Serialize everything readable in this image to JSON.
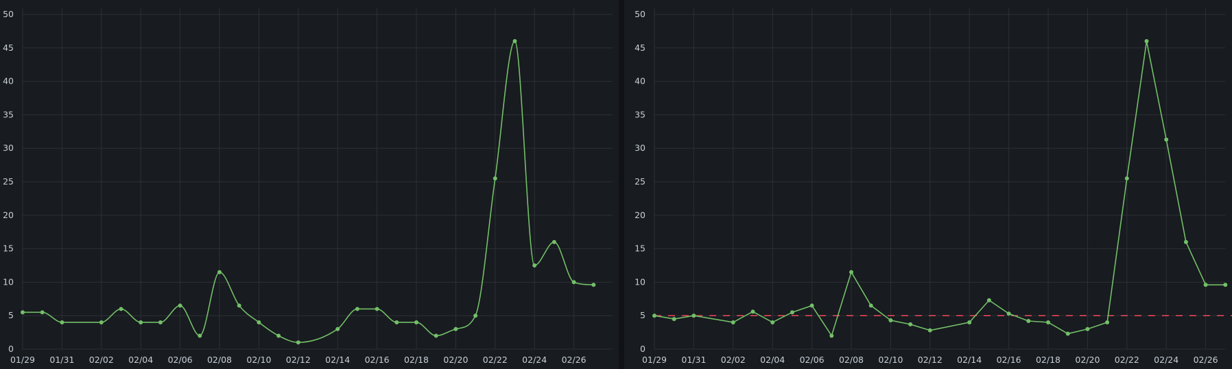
{
  "chart_data": [
    {
      "type": "line",
      "interpolation": "smooth",
      "title": "",
      "xlabel": "",
      "ylabel": "",
      "ylim": [
        0,
        50
      ],
      "yticks": [
        0,
        5,
        10,
        15,
        20,
        25,
        30,
        35,
        40,
        45,
        50
      ],
      "xticks": [
        "01/29",
        "01/31",
        "02/02",
        "02/04",
        "02/06",
        "02/08",
        "02/10",
        "02/12",
        "02/14",
        "02/16",
        "02/18",
        "02/20",
        "02/22",
        "02/24",
        "02/26"
      ],
      "grid": true,
      "legend": "none",
      "series": [
        {
          "color": "#73bf69",
          "points": [
            [
              "01/29",
              5.5
            ],
            [
              "01/30",
              5.5
            ],
            [
              "01/31",
              4
            ],
            [
              "02/02",
              4
            ],
            [
              "02/03",
              6
            ],
            [
              "02/04",
              4
            ],
            [
              "02/05",
              4
            ],
            [
              "02/06",
              6.5
            ],
            [
              "02/07",
              2
            ],
            [
              "02/08",
              11.5
            ],
            [
              "02/09",
              6.5
            ],
            [
              "02/10",
              4
            ],
            [
              "02/11",
              2
            ],
            [
              "02/12",
              1
            ],
            [
              "02/14",
              3
            ],
            [
              "02/15",
              6
            ],
            [
              "02/16",
              6
            ],
            [
              "02/17",
              4
            ],
            [
              "02/18",
              4
            ],
            [
              "02/19",
              2
            ],
            [
              "02/20",
              3
            ],
            [
              "02/21",
              5
            ],
            [
              "02/22",
              25.5
            ],
            [
              "02/23",
              46
            ],
            [
              "02/24",
              12.5
            ],
            [
              "02/25",
              16
            ],
            [
              "02/26",
              10
            ],
            [
              "02/27",
              9.6
            ]
          ]
        }
      ]
    },
    {
      "type": "line",
      "interpolation": "linear",
      "title": "",
      "xlabel": "",
      "ylabel": "",
      "ylim": [
        0,
        50
      ],
      "yticks": [
        0,
        5,
        10,
        15,
        20,
        25,
        30,
        35,
        40,
        45,
        50
      ],
      "xticks": [
        "01/29",
        "01/31",
        "02/02",
        "02/04",
        "02/06",
        "02/08",
        "02/10",
        "02/12",
        "02/14",
        "02/16",
        "02/18",
        "02/20",
        "02/22",
        "02/24",
        "02/26"
      ],
      "grid": true,
      "legend": "none",
      "threshold": {
        "value": 5,
        "color": "#f2495c",
        "style": "dashed"
      },
      "series": [
        {
          "color": "#73bf69",
          "points": [
            [
              "01/29",
              5
            ],
            [
              "01/30",
              4.5
            ],
            [
              "01/31",
              5
            ],
            [
              "02/02",
              4
            ],
            [
              "02/03",
              5.6
            ],
            [
              "02/04",
              4
            ],
            [
              "02/05",
              5.5
            ],
            [
              "02/06",
              6.5
            ],
            [
              "02/07",
              2
            ],
            [
              "02/08",
              11.5
            ],
            [
              "02/09",
              6.5
            ],
            [
              "02/10",
              4.3
            ],
            [
              "02/11",
              3.7
            ],
            [
              "02/12",
              2.8
            ],
            [
              "02/14",
              4
            ],
            [
              "02/15",
              7.3
            ],
            [
              "02/16",
              5.3
            ],
            [
              "02/17",
              4.2
            ],
            [
              "02/18",
              4
            ],
            [
              "02/19",
              2.3
            ],
            [
              "02/20",
              3
            ],
            [
              "02/21",
              4
            ],
            [
              "02/22",
              25.5
            ],
            [
              "02/23",
              46
            ],
            [
              "02/24",
              31.3
            ],
            [
              "02/25",
              16
            ],
            [
              "02/26",
              9.6
            ],
            [
              "02/27",
              9.6
            ]
          ]
        }
      ]
    }
  ],
  "colors": {
    "background": "#181b1f",
    "grid": "#2c3035",
    "text": "#c7d0d9",
    "series": "#73bf69",
    "threshold": "#f2495c"
  }
}
